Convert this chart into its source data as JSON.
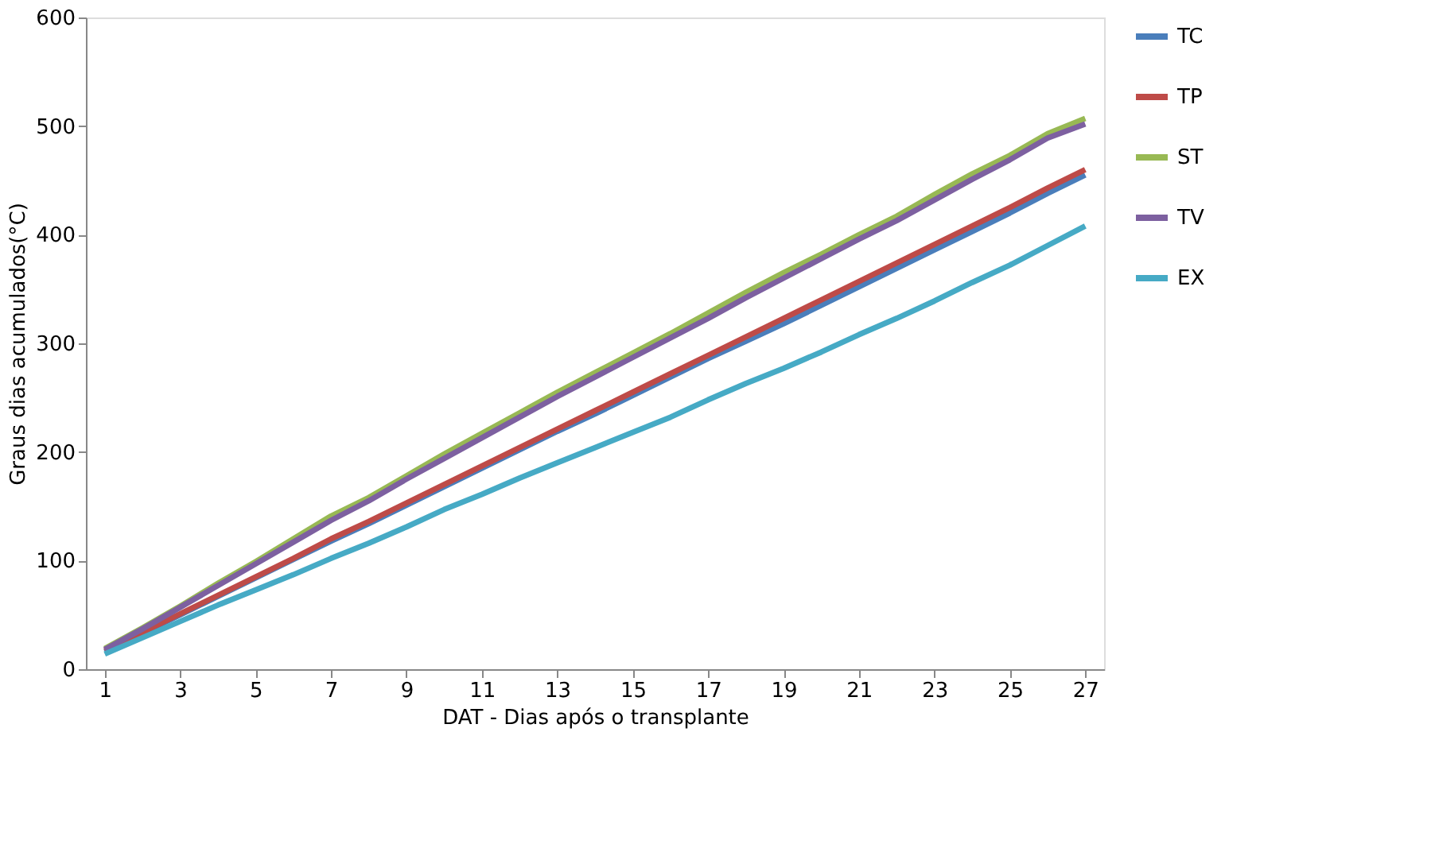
{
  "chart_data": {
    "type": "line",
    "xlabel": "DAT - Dias após o transplante",
    "ylabel": "Graus dias acumulados(°C)",
    "x": [
      1,
      2,
      3,
      4,
      5,
      6,
      7,
      8,
      9,
      10,
      11,
      12,
      13,
      14,
      15,
      16,
      17,
      18,
      19,
      20,
      21,
      22,
      23,
      24,
      25,
      26,
      27
    ],
    "xlim": [
      0.5,
      27.5
    ],
    "xticks": [
      1,
      3,
      5,
      7,
      9,
      11,
      13,
      15,
      17,
      19,
      21,
      23,
      25,
      27
    ],
    "ylim": [
      0,
      600
    ],
    "yticks": [
      0,
      100,
      200,
      300,
      400,
      500,
      600
    ],
    "grid": false,
    "legend": "right",
    "marker": "none",
    "line_style": "solid",
    "series": [
      {
        "name": "TC",
        "color": "#4a7ebb",
        "values": [
          16,
          33,
          50,
          67,
          84,
          101,
          118,
          134,
          151,
          168,
          185,
          202,
          219,
          235,
          252,
          269,
          286,
          302,
          318,
          335,
          352,
          369,
          386,
          403,
          420,
          438,
          455
        ]
      },
      {
        "name": "TP",
        "color": "#be4b48",
        "values": [
          17,
          34,
          51,
          68,
          85,
          102,
          120,
          136,
          153,
          170,
          187,
          204,
          221,
          238,
          255,
          272,
          289,
          306,
          323,
          340,
          357,
          374,
          391,
          408,
          425,
          443,
          460
        ]
      },
      {
        "name": "ST",
        "color": "#98b954",
        "values": [
          19,
          38,
          58,
          79,
          99,
          120,
          141,
          158,
          178,
          198,
          217,
          236,
          255,
          273,
          291,
          309,
          328,
          347,
          365,
          382,
          400,
          417,
          437,
          456,
          473,
          493,
          507
        ]
      },
      {
        "name": "TV",
        "color": "#7d60a0",
        "values": [
          18,
          37,
          57,
          77,
          97,
          117,
          137,
          155,
          175,
          194,
          213,
          232,
          251,
          269,
          287,
          305,
          323,
          342,
          360,
          378,
          396,
          413,
          432,
          451,
          469,
          489,
          502
        ]
      },
      {
        "name": "EX",
        "color": "#46aac5",
        "values": [
          14,
          29,
          44,
          59,
          73,
          87,
          102,
          116,
          131,
          147,
          161,
          176,
          190,
          204,
          218,
          232,
          248,
          263,
          277,
          292,
          308,
          323,
          339,
          356,
          372,
          390,
          408
        ]
      }
    ]
  }
}
